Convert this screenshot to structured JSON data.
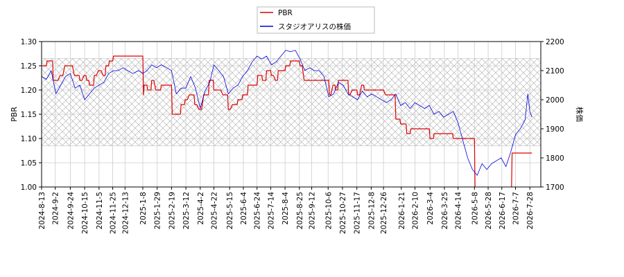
{
  "chart_data": {
    "type": "line",
    "legend": {
      "placement": "top-center",
      "entries": [
        "PBR",
        "スタジオアリスの株価"
      ]
    },
    "x_tick_labels": [
      "2024-8-13",
      "2024-9-2",
      "2024-9-24",
      "2024-10-15",
      "2024-11-5",
      "2024-11-25",
      "2024-12-13",
      "2025-1-8",
      "2025-1-29",
      "2025-2-19",
      "2025-3-12",
      "2025-4-2",
      "2025-4-22",
      "2025-5-15",
      "2025-6-4",
      "2025-6-24",
      "2025-7-14",
      "2025-8-4",
      "2025-8-25",
      "2025-9-12",
      "2025-10-6",
      "2025-10-27",
      "2025-11-17",
      "2025-12-8",
      "2025-12-26",
      "2026-1-21",
      "2026-2-10",
      "2026-3-4",
      "2026-3-25",
      "2026-4-14",
      "2026-5-8",
      "2026-5-28",
      "2026-6-17",
      "2026-7-7",
      "2026-7-28"
    ],
    "left_axis": {
      "label": "PBR",
      "ylim": [
        1.0,
        1.3
      ],
      "ticks": [
        "1.00",
        "1.05",
        "1.10",
        "1.15",
        "1.20",
        "1.25",
        "1.30"
      ]
    },
    "right_axis": {
      "label": "株価",
      "ylim": [
        1700,
        2200
      ],
      "ticks": [
        "1700",
        "1800",
        "1900",
        "2000",
        "2100",
        "2200"
      ]
    },
    "grid": true,
    "hatched_band": {
      "ylim": [
        1.085,
        1.265
      ],
      "pattern": "cross-hatch"
    },
    "series": [
      {
        "name": "PBR",
        "color": "#dd0000",
        "axis": "left",
        "points": [
          [
            "2024-8-13",
            1.25
          ],
          [
            "2024-8-20",
            1.25
          ],
          [
            "2024-8-21",
            1.26
          ],
          [
            "2024-8-29",
            1.26
          ],
          [
            "2024-8-30",
            1.22
          ],
          [
            "2024-9-6",
            1.22
          ],
          [
            "2024-9-9",
            1.23
          ],
          [
            "2024-9-13",
            1.23
          ],
          [
            "2024-9-16",
            1.25
          ],
          [
            "2024-9-27",
            1.25
          ],
          [
            "2024-9-30",
            1.23
          ],
          [
            "2024-10-7",
            1.23
          ],
          [
            "2024-10-8",
            1.22
          ],
          [
            "2024-10-11",
            1.22
          ],
          [
            "2024-10-14",
            1.23
          ],
          [
            "2024-10-17",
            1.23
          ],
          [
            "2024-10-18",
            1.22
          ],
          [
            "2024-10-21",
            1.22
          ],
          [
            "2024-10-22",
            1.21
          ],
          [
            "2024-10-28",
            1.21
          ],
          [
            "2024-10-29",
            1.23
          ],
          [
            "2024-11-1",
            1.23
          ],
          [
            "2024-11-4",
            1.24
          ],
          [
            "2024-11-8",
            1.24
          ],
          [
            "2024-11-11",
            1.23
          ],
          [
            "2024-11-14",
            1.23
          ],
          [
            "2024-11-15",
            1.25
          ],
          [
            "2024-11-19",
            1.25
          ],
          [
            "2024-11-20",
            1.26
          ],
          [
            "2024-11-25",
            1.26
          ],
          [
            "2024-11-26",
            1.27
          ],
          [
            "2025-1-8",
            1.27
          ],
          [
            "2025-1-9",
            1.19
          ],
          [
            "2025-1-10",
            1.21
          ],
          [
            "2025-1-14",
            1.21
          ],
          [
            "2025-1-15",
            1.2
          ],
          [
            "2025-1-20",
            1.2
          ],
          [
            "2025-1-21",
            1.22
          ],
          [
            "2025-1-24",
            1.22
          ],
          [
            "2025-1-27",
            1.2
          ],
          [
            "2025-2-3",
            1.2
          ],
          [
            "2025-2-4",
            1.21
          ],
          [
            "2025-2-19",
            1.21
          ],
          [
            "2025-2-20",
            1.15
          ],
          [
            "2025-3-4",
            1.15
          ],
          [
            "2025-3-5",
            1.17
          ],
          [
            "2025-3-10",
            1.17
          ],
          [
            "2025-3-11",
            1.18
          ],
          [
            "2025-3-14",
            1.18
          ],
          [
            "2025-3-17",
            1.19
          ],
          [
            "2025-3-24",
            1.19
          ],
          [
            "2025-3-25",
            1.17
          ],
          [
            "2025-3-28",
            1.17
          ],
          [
            "2025-3-31",
            1.16
          ],
          [
            "2025-4-4",
            1.16
          ],
          [
            "2025-4-7",
            1.19
          ],
          [
            "2025-4-14",
            1.19
          ],
          [
            "2025-4-15",
            1.22
          ],
          [
            "2025-4-21",
            1.22
          ],
          [
            "2025-4-22",
            1.2
          ],
          [
            "2025-5-2",
            1.2
          ],
          [
            "2025-5-5",
            1.19
          ],
          [
            "2025-5-12",
            1.19
          ],
          [
            "2025-5-13",
            1.16
          ],
          [
            "2025-5-16",
            1.16
          ],
          [
            "2025-5-19",
            1.17
          ],
          [
            "2025-5-26",
            1.17
          ],
          [
            "2025-5-27",
            1.18
          ],
          [
            "2025-6-2",
            1.18
          ],
          [
            "2025-6-3",
            1.19
          ],
          [
            "2025-6-10",
            1.19
          ],
          [
            "2025-6-11",
            1.21
          ],
          [
            "2025-6-24",
            1.21
          ],
          [
            "2025-6-25",
            1.23
          ],
          [
            "2025-7-1",
            1.23
          ],
          [
            "2025-7-2",
            1.22
          ],
          [
            "2025-7-7",
            1.22
          ],
          [
            "2025-7-8",
            1.24
          ],
          [
            "2025-7-14",
            1.24
          ],
          [
            "2025-7-15",
            1.23
          ],
          [
            "2025-7-18",
            1.23
          ],
          [
            "2025-7-21",
            1.22
          ],
          [
            "2025-7-24",
            1.22
          ],
          [
            "2025-7-25",
            1.24
          ],
          [
            "2025-8-4",
            1.24
          ],
          [
            "2025-8-5",
            1.25
          ],
          [
            "2025-8-11",
            1.25
          ],
          [
            "2025-8-12",
            1.26
          ],
          [
            "2025-8-25",
            1.26
          ],
          [
            "2025-8-26",
            1.25
          ],
          [
            "2025-8-29",
            1.25
          ],
          [
            "2025-9-1",
            1.22
          ],
          [
            "2025-10-7",
            1.22
          ],
          [
            "2025-10-8",
            1.19
          ],
          [
            "2025-10-10",
            1.19
          ],
          [
            "2025-10-13",
            1.21
          ],
          [
            "2025-10-16",
            1.21
          ],
          [
            "2025-10-17",
            1.2
          ],
          [
            "2025-10-20",
            1.2
          ],
          [
            "2025-10-21",
            1.22
          ],
          [
            "2025-11-4",
            1.22
          ],
          [
            "2025-11-5",
            1.19
          ],
          [
            "2025-11-7",
            1.19
          ],
          [
            "2025-11-10",
            1.2
          ],
          [
            "2025-11-17",
            1.2
          ],
          [
            "2025-11-18",
            1.19
          ],
          [
            "2025-11-21",
            1.19
          ],
          [
            "2025-11-24",
            1.21
          ],
          [
            "2025-11-27",
            1.21
          ],
          [
            "2025-11-28",
            1.2
          ],
          [
            "2025-12-26",
            1.2
          ],
          [
            "2025-12-29",
            1.19
          ],
          [
            "2026-1-12",
            1.19
          ],
          [
            "2026-1-13",
            1.14
          ],
          [
            "2026-1-19",
            1.14
          ],
          [
            "2026-1-20",
            1.13
          ],
          [
            "2026-1-28",
            1.13
          ],
          [
            "2026-1-29",
            1.11
          ],
          [
            "2026-2-3",
            1.11
          ],
          [
            "2026-2-4",
            1.12
          ],
          [
            "2026-3-3",
            1.12
          ],
          [
            "2026-3-4",
            1.1
          ],
          [
            "2026-3-9",
            1.1
          ],
          [
            "2026-3-10",
            1.11
          ],
          [
            "2026-4-6",
            1.11
          ],
          [
            "2026-4-7",
            1.1
          ],
          [
            "2026-5-8",
            1.1
          ],
          [
            "2026-5-9",
            0.98
          ],
          [
            "2026-7-1",
            0.98
          ],
          [
            "2026-7-2",
            1.07
          ],
          [
            "2026-7-31",
            1.07
          ]
        ]
      },
      {
        "name": "スタジオアリスの株価",
        "color": "#0000dd",
        "axis": "right",
        "points": [
          [
            "2024-8-13",
            2080
          ],
          [
            "2024-8-20",
            2070
          ],
          [
            "2024-8-27",
            2100
          ],
          [
            "2024-9-3",
            2020
          ],
          [
            "2024-9-10",
            2050
          ],
          [
            "2024-9-17",
            2080
          ],
          [
            "2024-9-24",
            2090
          ],
          [
            "2024-10-1",
            2040
          ],
          [
            "2024-10-8",
            2050
          ],
          [
            "2024-10-15",
            2000
          ],
          [
            "2024-10-22",
            2020
          ],
          [
            "2024-10-29",
            2040
          ],
          [
            "2024-11-5",
            2050
          ],
          [
            "2024-11-12",
            2060
          ],
          [
            "2024-11-19",
            2090
          ],
          [
            "2024-11-26",
            2100
          ],
          [
            "2024-12-3",
            2100
          ],
          [
            "2024-12-10",
            2110
          ],
          [
            "2024-12-17",
            2100
          ],
          [
            "2024-12-24",
            2090
          ],
          [
            "2025-1-2",
            2100
          ],
          [
            "2025-1-8",
            2090
          ],
          [
            "2025-1-14",
            2100
          ],
          [
            "2025-1-21",
            2120
          ],
          [
            "2025-1-28",
            2110
          ],
          [
            "2025-2-4",
            2120
          ],
          [
            "2025-2-12",
            2110
          ],
          [
            "2025-2-19",
            2100
          ],
          [
            "2025-2-26",
            2020
          ],
          [
            "2025-3-5",
            2040
          ],
          [
            "2025-3-12",
            2040
          ],
          [
            "2025-3-19",
            2080
          ],
          [
            "2025-3-26",
            2040
          ],
          [
            "2025-4-2",
            1970
          ],
          [
            "2025-4-9",
            2030
          ],
          [
            "2025-4-16",
            2060
          ],
          [
            "2025-4-22",
            2120
          ],
          [
            "2025-4-29",
            2100
          ],
          [
            "2025-5-6",
            2080
          ],
          [
            "2025-5-13",
            2020
          ],
          [
            "2025-5-20",
            2040
          ],
          [
            "2025-5-27",
            2050
          ],
          [
            "2025-6-3",
            2080
          ],
          [
            "2025-6-10",
            2100
          ],
          [
            "2025-6-17",
            2130
          ],
          [
            "2025-6-24",
            2150
          ],
          [
            "2025-7-1",
            2140
          ],
          [
            "2025-7-8",
            2150
          ],
          [
            "2025-7-15",
            2120
          ],
          [
            "2025-7-22",
            2130
          ],
          [
            "2025-7-29",
            2150
          ],
          [
            "2025-8-5",
            2170
          ],
          [
            "2025-8-12",
            2165
          ],
          [
            "2025-8-19",
            2170
          ],
          [
            "2025-8-26",
            2140
          ],
          [
            "2025-9-2",
            2100
          ],
          [
            "2025-9-9",
            2110
          ],
          [
            "2025-9-16",
            2100
          ],
          [
            "2025-9-23",
            2100
          ],
          [
            "2025-9-30",
            2080
          ],
          [
            "2025-10-7",
            2010
          ],
          [
            "2025-10-14",
            2020
          ],
          [
            "2025-10-21",
            2060
          ],
          [
            "2025-10-28",
            2050
          ],
          [
            "2025-11-4",
            2020
          ],
          [
            "2025-11-11",
            2010
          ],
          [
            "2025-11-18",
            2000
          ],
          [
            "2025-11-25",
            2030
          ],
          [
            "2025-12-2",
            2010
          ],
          [
            "2025-12-9",
            2020
          ],
          [
            "2025-12-16",
            2010
          ],
          [
            "2025-12-23",
            2000
          ],
          [
            "2025-12-30",
            1990
          ],
          [
            "2026-1-6",
            2000
          ],
          [
            "2026-1-13",
            2020
          ],
          [
            "2026-1-20",
            1980
          ],
          [
            "2026-1-27",
            1990
          ],
          [
            "2026-2-3",
            1970
          ],
          [
            "2026-2-10",
            1990
          ],
          [
            "2026-2-17",
            1980
          ],
          [
            "2026-2-24",
            1970
          ],
          [
            "2026-3-3",
            1980
          ],
          [
            "2026-3-10",
            1950
          ],
          [
            "2026-3-17",
            1960
          ],
          [
            "2026-3-24",
            1940
          ],
          [
            "2026-3-31",
            1950
          ],
          [
            "2026-4-7",
            1960
          ],
          [
            "2026-4-14",
            1920
          ],
          [
            "2026-4-21",
            1860
          ],
          [
            "2026-4-28",
            1800
          ],
          [
            "2026-5-5",
            1760
          ],
          [
            "2026-5-12",
            1740
          ],
          [
            "2026-5-19",
            1780
          ],
          [
            "2026-5-26",
            1760
          ],
          [
            "2026-6-2",
            1780
          ],
          [
            "2026-6-9",
            1790
          ],
          [
            "2026-6-16",
            1800
          ],
          [
            "2026-6-23",
            1770
          ],
          [
            "2026-6-30",
            1820
          ],
          [
            "2026-7-7",
            1880
          ],
          [
            "2026-7-14",
            1900
          ],
          [
            "2026-7-21",
            1930
          ],
          [
            "2026-7-25",
            2020
          ],
          [
            "2026-7-28",
            1960
          ],
          [
            "2026-7-31",
            1940
          ]
        ]
      }
    ]
  }
}
